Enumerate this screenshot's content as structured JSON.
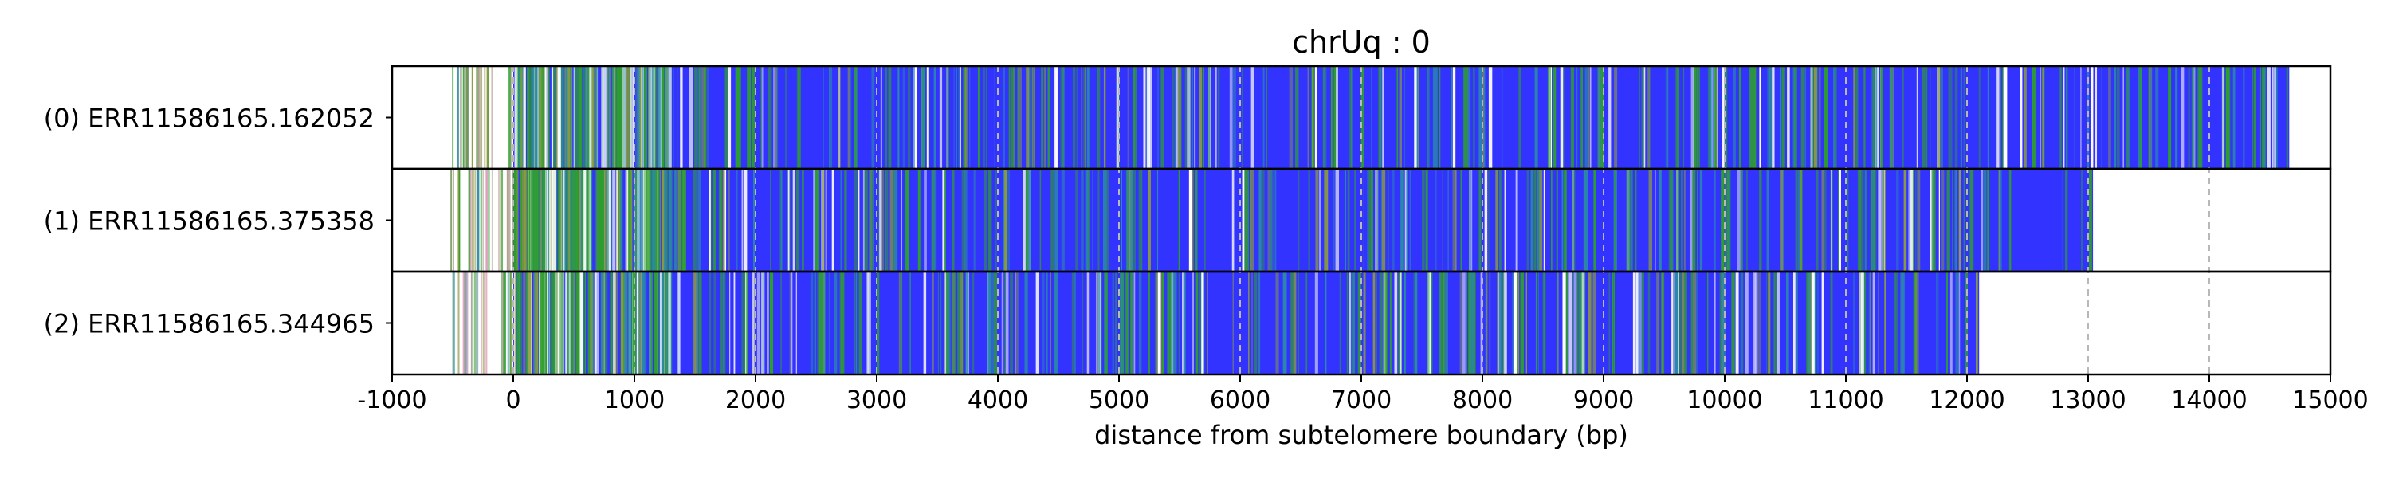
{
  "chart_data": {
    "type": "bar",
    "orientation": "horizontal",
    "title": "chrUq : 0",
    "xlabel": "distance from subtelomere boundary (bp)",
    "ylabel": "",
    "xlim": [
      -1000,
      15000
    ],
    "xticks": [
      -1000,
      0,
      1000,
      2000,
      3000,
      4000,
      5000,
      6000,
      7000,
      8000,
      9000,
      10000,
      11000,
      12000,
      13000,
      14000,
      15000
    ],
    "xtick_labels": [
      "-1000",
      "0",
      "1000",
      "2000",
      "3000",
      "4000",
      "5000",
      "6000",
      "7000",
      "8000",
      "9000",
      "10000",
      "11000",
      "12000",
      "13000",
      "14000",
      "15000"
    ],
    "grid": "vertical dashed at each tick",
    "reads": [
      {
        "label": "(0) ERR11586165.162052",
        "start": -530,
        "end": 14660
      },
      {
        "label": "(1) ERR11586165.375358",
        "start": -530,
        "end": 13040
      },
      {
        "label": "(2) ERR11586165.344965",
        "start": -530,
        "end": 12100
      }
    ],
    "colors": {
      "telomere": "#3333ff",
      "variant_green": "#2e9e2e",
      "variant_teal": "#2a8aa8",
      "variant_white": "#ffffff",
      "variant_olive": "#8a9a40",
      "variant_pink": "#e0a0c0",
      "variant_tan": "#b0a090"
    }
  }
}
